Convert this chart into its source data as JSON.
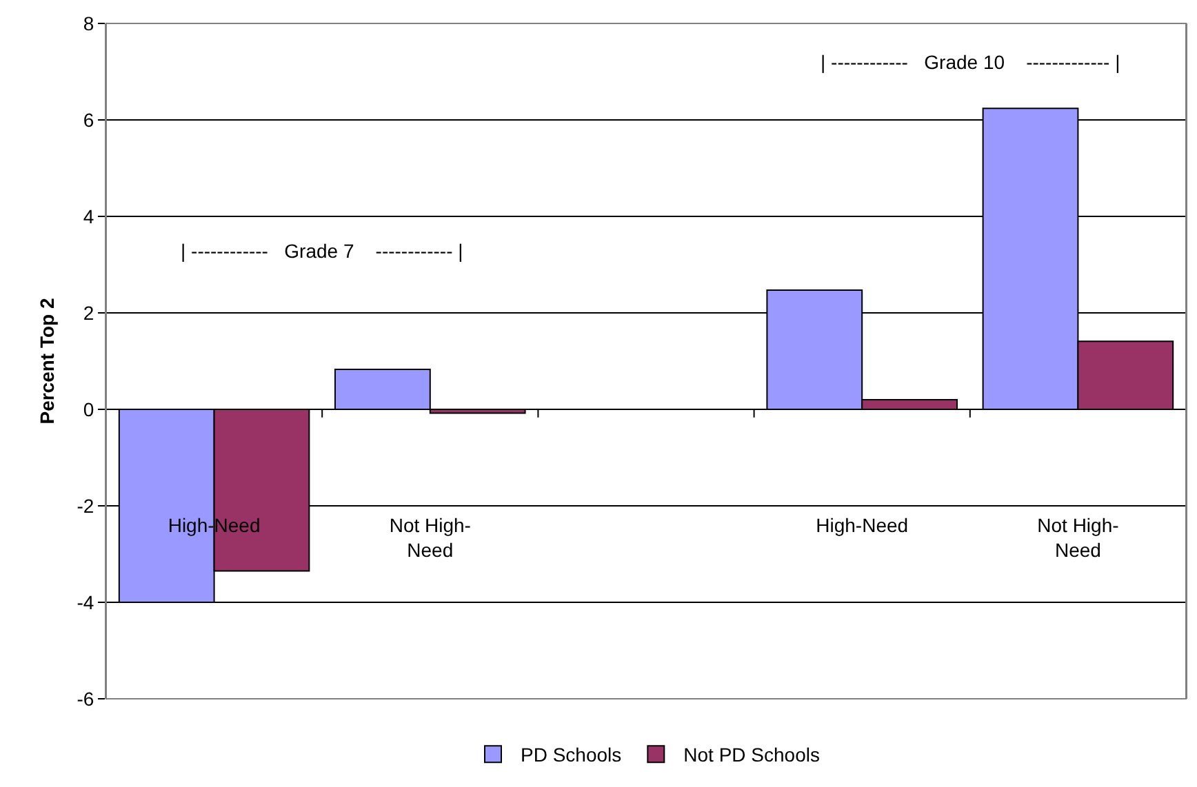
{
  "chart_data": {
    "type": "bar",
    "ylabel": "Percent Top 2",
    "categories": [
      "High-Need",
      "Not High-Need",
      null,
      "High-Need",
      "Not High-Need"
    ],
    "series": [
      {
        "name": "PD Schools",
        "color": "#9999ff",
        "values": [
          -4.0,
          0.83,
          null,
          2.47,
          6.24
        ]
      },
      {
        "name": "Not PD Schools",
        "color": "#993366",
        "values": [
          -3.35,
          -0.08,
          null,
          0.2,
          1.41
        ]
      }
    ],
    "ylim": [
      -6,
      8
    ],
    "yticks": [
      -6,
      -4,
      -2,
      0,
      2,
      4,
      6,
      8
    ],
    "grid": "y",
    "legend": "bottom",
    "annotations": [
      "| ------------   Grade 7    ------------ |",
      "| ------------   Grade 10    ------------- |"
    ]
  }
}
